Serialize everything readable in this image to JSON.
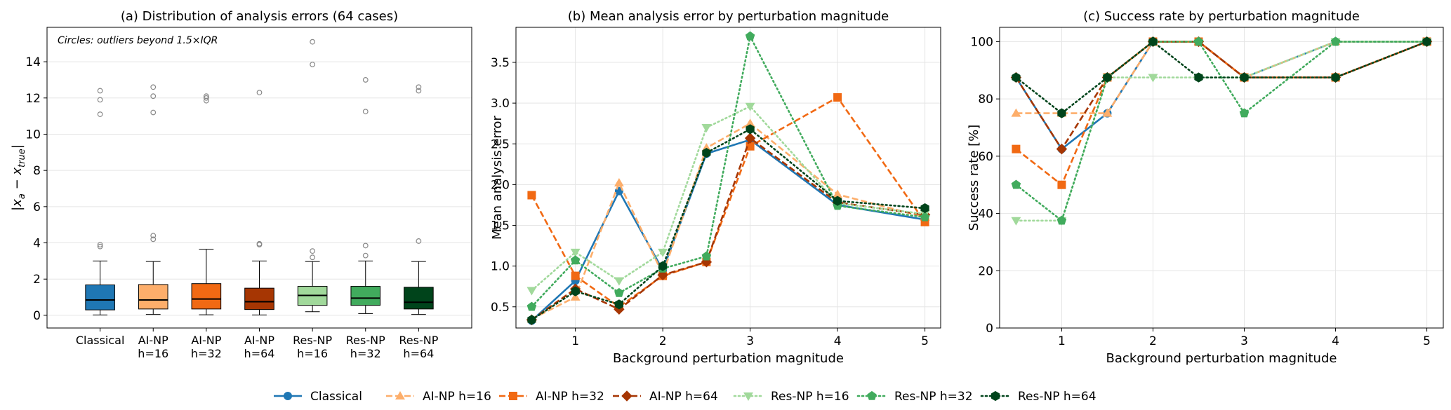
{
  "legend": {
    "entries": [
      {
        "label": "Classical",
        "color": "#1f77b4",
        "marker": "circle",
        "dash": "solid"
      },
      {
        "label": "AI-NP h=16",
        "color": "#fdae6b",
        "marker": "triangle-up",
        "dash": "dashed"
      },
      {
        "label": "AI-NP h=32",
        "color": "#f16913",
        "marker": "square",
        "dash": "dashed"
      },
      {
        "label": "AI-NP h=64",
        "color": "#a63603",
        "marker": "diamond",
        "dash": "dashed"
      },
      {
        "label": "Res-NP h=16",
        "color": "#a1d99b",
        "marker": "triangle-down",
        "dash": "dotted"
      },
      {
        "label": "Res-NP h=32",
        "color": "#41ab5d",
        "marker": "pentagon",
        "dash": "dotted"
      },
      {
        "label": "Res-NP h=64",
        "color": "#00441b",
        "marker": "hexagon",
        "dash": "dotted"
      }
    ]
  },
  "chart_data": [
    {
      "type": "box",
      "title": "(a) Distribution of analysis errors (64 cases)",
      "annotation": "Circles: outliers beyond 1.5×IQR",
      "ylabel": "|x_a − x_true|",
      "ylim": [
        -0.7,
        15.9
      ],
      "yticks": [
        0,
        2,
        4,
        6,
        8,
        10,
        12,
        14
      ],
      "grid": true,
      "categories": [
        [
          "Classical"
        ],
        [
          "AI-NP",
          "h=16"
        ],
        [
          "AI-NP",
          "h=32"
        ],
        [
          "AI-NP",
          "h=64"
        ],
        [
          "Res-NP",
          "h=16"
        ],
        [
          "Res-NP",
          "h=32"
        ],
        [
          "Res-NP",
          "h=64"
        ]
      ],
      "boxes": [
        {
          "color": "#1f77b4",
          "whisker_low": 0.02,
          "q1": 0.3,
          "median": 0.85,
          "q3": 1.68,
          "whisker_high": 3.0,
          "outliers": [
            3.8,
            3.9,
            11.1,
            11.9,
            12.4
          ]
        },
        {
          "color": "#fdae6b",
          "whisker_low": 0.05,
          "q1": 0.35,
          "median": 0.85,
          "q3": 1.7,
          "whisker_high": 2.97,
          "outliers": [
            4.2,
            4.4,
            11.2,
            12.1,
            12.6
          ]
        },
        {
          "color": "#f16913",
          "whisker_low": 0.03,
          "q1": 0.35,
          "median": 0.9,
          "q3": 1.75,
          "whisker_high": 3.65,
          "outliers": [
            11.85,
            12.0,
            12.1
          ]
        },
        {
          "color": "#a63603",
          "whisker_low": 0.02,
          "q1": 0.32,
          "median": 0.75,
          "q3": 1.5,
          "whisker_high": 3.0,
          "outliers": [
            3.9,
            3.95,
            12.3
          ]
        },
        {
          "color": "#a1d99b",
          "whisker_low": 0.2,
          "q1": 0.55,
          "median": 1.1,
          "q3": 1.6,
          "whisker_high": 2.97,
          "outliers": [
            3.2,
            3.55,
            13.85,
            15.1
          ]
        },
        {
          "color": "#41ab5d",
          "whisker_low": 0.1,
          "q1": 0.55,
          "median": 0.95,
          "q3": 1.6,
          "whisker_high": 3.0,
          "outliers": [
            3.3,
            3.85,
            11.25,
            13.0
          ]
        },
        {
          "color": "#00441b",
          "whisker_low": 0.05,
          "q1": 0.35,
          "median": 0.72,
          "q3": 1.55,
          "whisker_high": 2.97,
          "outliers": [
            4.1,
            12.4,
            12.6
          ]
        }
      ]
    },
    {
      "type": "line",
      "title": "(b) Mean analysis error by perturbation magnitude",
      "xlabel": "Background perturbation magnitude",
      "ylabel": "Mean analysis error",
      "xlim": [
        0.32,
        5.18
      ],
      "ylim": [
        0.24,
        3.93
      ],
      "xticks": [
        1,
        2,
        3,
        4,
        5
      ],
      "yticks": [
        0.5,
        1.0,
        1.5,
        2.0,
        2.5,
        3.0,
        3.5
      ],
      "ytick_labels": [
        "0.5",
        "1.0",
        "1.5",
        "2.0",
        "2.5",
        "3.0",
        "3.5"
      ],
      "grid": true,
      "x": [
        0.5,
        1,
        1.5,
        2,
        2.5,
        3,
        4,
        5
      ],
      "series": [
        {
          "name": "Classical",
          "values": [
            0.33,
            0.82,
            1.92,
            0.95,
            2.38,
            2.55,
            1.75,
            1.57
          ]
        },
        {
          "name": "AI-NP h=16",
          "values": [
            0.35,
            0.62,
            2.02,
            0.9,
            2.45,
            2.75,
            1.88,
            1.6
          ]
        },
        {
          "name": "AI-NP h=32",
          "values": [
            1.87,
            0.88,
            0.5,
            0.88,
            1.05,
            2.47,
            3.07,
            1.54
          ]
        },
        {
          "name": "AI-NP h=64",
          "values": [
            0.34,
            0.72,
            0.47,
            0.89,
            1.05,
            2.57,
            1.78,
            1.63
          ]
        },
        {
          "name": "Res-NP h=16",
          "values": [
            0.7,
            1.17,
            0.82,
            1.17,
            2.7,
            2.96,
            1.77,
            1.64
          ]
        },
        {
          "name": "Res-NP h=32",
          "values": [
            0.5,
            1.07,
            0.67,
            0.97,
            1.12,
            3.82,
            1.74,
            1.6
          ]
        },
        {
          "name": "Res-NP h=64",
          "values": [
            0.34,
            0.69,
            0.53,
            1.0,
            2.39,
            2.68,
            1.8,
            1.71
          ]
        }
      ]
    },
    {
      "type": "line",
      "title": "(c) Success rate by perturbation magnitude",
      "xlabel": "Background perturbation magnitude",
      "ylabel": "Success rate [%]",
      "xlim": [
        0.32,
        5.18
      ],
      "ylim": [
        0,
        105
      ],
      "xticks": [
        1,
        2,
        3,
        4,
        5
      ],
      "yticks": [
        0,
        20,
        40,
        60,
        80,
        100
      ],
      "grid": true,
      "x": [
        0.5,
        1,
        1.5,
        2,
        2.5,
        3,
        4,
        5
      ],
      "series": [
        {
          "name": "Classical",
          "values": [
            87.5,
            62.5,
            75,
            100,
            100,
            87.5,
            100,
            100
          ]
        },
        {
          "name": "AI-NP h=16",
          "values": [
            75,
            75,
            75,
            100,
            100,
            87.5,
            100,
            100
          ]
        },
        {
          "name": "AI-NP h=32",
          "values": [
            62.5,
            50,
            87.5,
            100,
            100,
            87.5,
            87.5,
            100
          ]
        },
        {
          "name": "AI-NP h=64",
          "values": [
            87.5,
            62.5,
            87.5,
            100,
            100,
            87.5,
            87.5,
            100
          ]
        },
        {
          "name": "Res-NP h=16",
          "values": [
            37.5,
            37.5,
            87.5,
            87.5,
            87.5,
            87.5,
            100,
            100
          ]
        },
        {
          "name": "Res-NP h=32",
          "values": [
            50,
            37.5,
            87.5,
            100,
            100,
            75,
            100,
            100
          ]
        },
        {
          "name": "Res-NP h=64",
          "values": [
            87.5,
            75,
            87.5,
            100,
            87.5,
            87.5,
            87.5,
            100
          ]
        }
      ]
    }
  ]
}
